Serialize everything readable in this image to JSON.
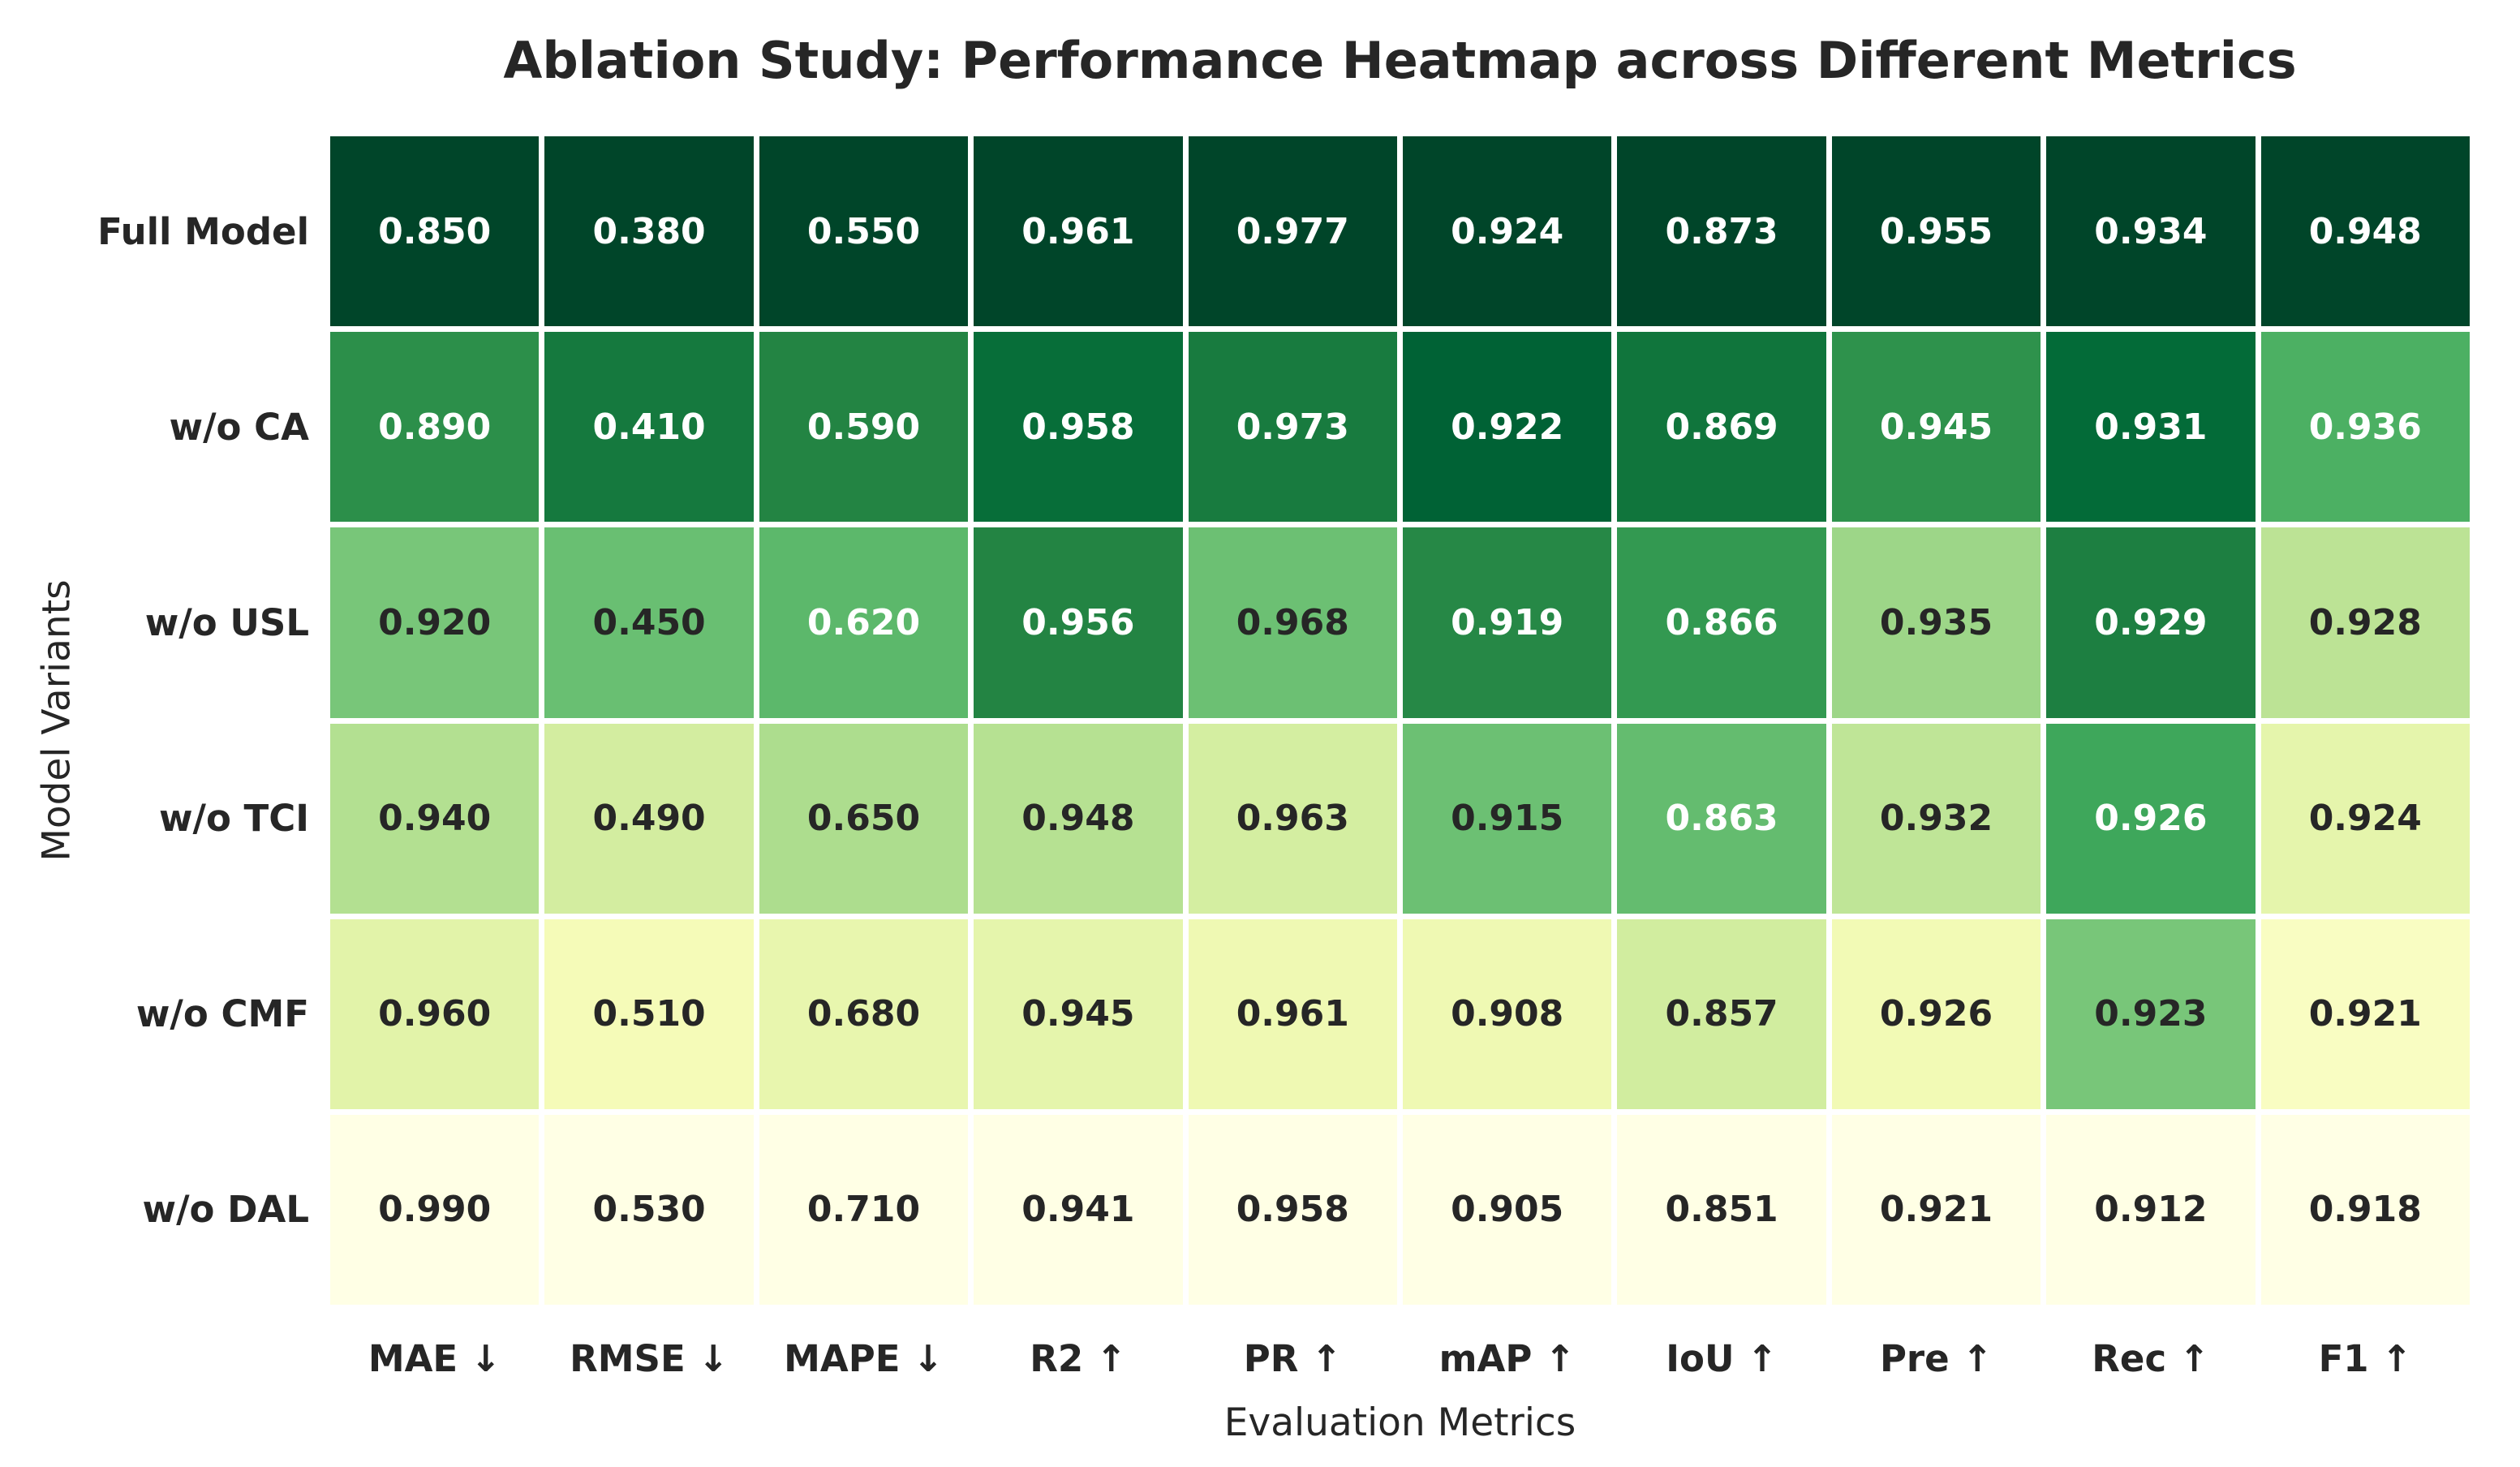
{
  "title": "Ablation Study: Performance Heatmap across Different Metrics",
  "axes": {
    "x_label": "Evaluation Metrics",
    "y_label": "Model Variants"
  },
  "chart_data": {
    "type": "heatmap",
    "title": "Ablation Study: Performance Heatmap across Different Metrics",
    "xlabel": "Evaluation Metrics",
    "ylabel": "Model Variants",
    "rows": [
      "Full Model",
      "w/o CA",
      "w/o USL",
      "w/o TCI",
      "w/o CMF",
      "w/o DAL"
    ],
    "columns": [
      "MAE ↓",
      "RMSE ↓",
      "MAPE ↓",
      "R2 ↑",
      "PR ↑",
      "mAP ↑",
      "IoU ↑",
      "Pre ↑",
      "Rec ↑",
      "F1 ↑"
    ],
    "higher_is_better": [
      false,
      false,
      false,
      true,
      true,
      true,
      true,
      true,
      true,
      true
    ],
    "values": [
      [
        0.85,
        0.38,
        0.55,
        0.961,
        0.977,
        0.924,
        0.873,
        0.955,
        0.934,
        0.948
      ],
      [
        0.89,
        0.41,
        0.59,
        0.958,
        0.973,
        0.922,
        0.869,
        0.945,
        0.931,
        0.936
      ],
      [
        0.92,
        0.45,
        0.62,
        0.956,
        0.968,
        0.919,
        0.866,
        0.935,
        0.929,
        0.928
      ],
      [
        0.94,
        0.49,
        0.65,
        0.948,
        0.963,
        0.915,
        0.863,
        0.932,
        0.926,
        0.924
      ],
      [
        0.96,
        0.51,
        0.68,
        0.945,
        0.961,
        0.908,
        0.857,
        0.926,
        0.923,
        0.921
      ],
      [
        0.99,
        0.53,
        0.71,
        0.941,
        0.958,
        0.905,
        0.851,
        0.921,
        0.912,
        0.918
      ]
    ],
    "value_decimals": 3,
    "normalization": "per-column min-max; best value of each metric mapped to darkest green",
    "colormap": {
      "name": "YlGn",
      "stops": [
        {
          "t": 0.0,
          "color": "#ffffe5"
        },
        {
          "t": 0.125,
          "color": "#f7fcb9"
        },
        {
          "t": 0.25,
          "color": "#d9f0a3"
        },
        {
          "t": 0.375,
          "color": "#addd8e"
        },
        {
          "t": 0.5,
          "color": "#78c679"
        },
        {
          "t": 0.625,
          "color": "#41ab5d"
        },
        {
          "t": 0.75,
          "color": "#238443"
        },
        {
          "t": 0.875,
          "color": "#006837"
        },
        {
          "t": 1.0,
          "color": "#004529"
        }
      ]
    },
    "style": {
      "annot_dark_color": "#262626",
      "annot_light_color": "#ffffff",
      "label_color": "#262626",
      "cell_gap_color": "#ffffff",
      "background": "#ffffff",
      "luminance_threshold": 0.408
    },
    "legend": "none",
    "grid": "white separators between cells"
  }
}
